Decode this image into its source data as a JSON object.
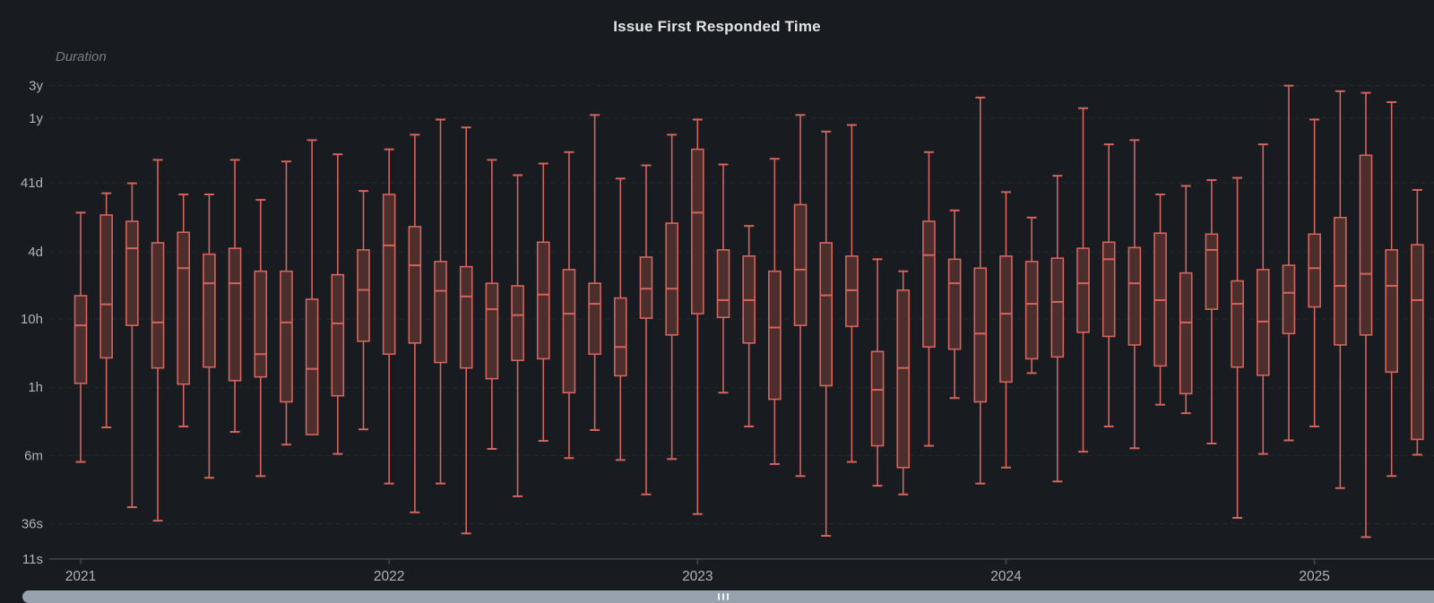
{
  "panel": {
    "title": "Issue First Responded Time",
    "y_axis_label": "Duration",
    "colors": {
      "background": "#181b1f",
      "title_text": "#e3e4e6",
      "axis_text": "#b0b3b6",
      "axis_title_text": "#787d84",
      "box_border": "#d4645e",
      "box_fill": "#4c2e2d",
      "grid_line": "rgba(255,255,255,0.07)",
      "axis_line": "#44474b",
      "scrollbar": "#98a1ae"
    }
  },
  "chart_data": {
    "type": "boxplot",
    "title": "Issue First Responded Time",
    "ylabel": "Duration",
    "xlabel": "",
    "y_scale": "log",
    "unit": "seconds",
    "grid": "horizontal-dashed",
    "stats_order": [
      "min",
      "q1",
      "median",
      "q3",
      "max"
    ],
    "y_ticks": [
      {
        "label": "3y",
        "seconds": 94608000
      },
      {
        "label": "1y",
        "seconds": 31536000
      },
      {
        "label": "41d",
        "seconds": 3542400
      },
      {
        "label": "4d",
        "seconds": 345600
      },
      {
        "label": "10h",
        "seconds": 36000
      },
      {
        "label": "1h",
        "seconds": 3600
      },
      {
        "label": "6m",
        "seconds": 360
      },
      {
        "label": "36s",
        "seconds": 36
      },
      {
        "label": "11s",
        "seconds": 11
      }
    ],
    "x_year_labels": [
      "2021",
      "2022",
      "2023",
      "2024",
      "2025"
    ],
    "categories": [
      "2021-01",
      "2021-02",
      "2021-03",
      "2021-04",
      "2021-05",
      "2021-06",
      "2021-07",
      "2021-08",
      "2021-09",
      "2021-10",
      "2021-11",
      "2021-12",
      "2022-01",
      "2022-02",
      "2022-03",
      "2022-04",
      "2022-05",
      "2022-06",
      "2022-07",
      "2022-08",
      "2022-09",
      "2022-10",
      "2022-11",
      "2022-12",
      "2023-01",
      "2023-02",
      "2023-03",
      "2023-04",
      "2023-05",
      "2023-06",
      "2023-07",
      "2023-08",
      "2023-09",
      "2023-10",
      "2023-11",
      "2023-12",
      "2024-01",
      "2024-02",
      "2024-03",
      "2024-04",
      "2024-05",
      "2024-06",
      "2024-07",
      "2024-08",
      "2024-09",
      "2024-10",
      "2024-11",
      "2024-12",
      "2025-01",
      "2025-02",
      "2025-03",
      "2025-04",
      "2025-05"
    ],
    "values": [
      [
        290,
        4100,
        29000,
        79000,
        1300000
      ],
      [
        930,
        9700,
        59000,
        1200000,
        2500000
      ],
      [
        63,
        29000,
        390000,
        970000,
        3500000
      ],
      [
        40,
        6900,
        32000,
        470000,
        7700000
      ],
      [
        960,
        4000,
        200000,
        670000,
        2400000
      ],
      [
        170,
        7100,
        120000,
        320000,
        2400000
      ],
      [
        800,
        4500,
        120000,
        390000,
        7700000
      ],
      [
        180,
        5100,
        11000,
        180000,
        2000000
      ],
      [
        520,
        2200,
        32000,
        180000,
        7300000
      ],
      [
        730,
        730,
        6700,
        70000,
        15000000
      ],
      [
        380,
        2700,
        31000,
        160000,
        9300000
      ],
      [
        870,
        17000,
        96000,
        370000,
        2700000
      ],
      [
        140,
        11000,
        430000,
        2400000,
        11000000
      ],
      [
        53,
        16000,
        220000,
        810000,
        18000000
      ],
      [
        140,
        8300,
        93000,
        250000,
        30000000
      ],
      [
        26,
        6900,
        77000,
        210000,
        23000000
      ],
      [
        450,
        4800,
        50000,
        120000,
        7700000
      ],
      [
        91,
        8900,
        41000,
        110000,
        4600000
      ],
      [
        590,
        9400,
        82000,
        480000,
        6800000
      ],
      [
        330,
        3000,
        43000,
        190000,
        10000000
      ],
      [
        850,
        11000,
        60000,
        120000,
        35000000
      ],
      [
        310,
        5300,
        14000,
        73000,
        4100000
      ],
      [
        97,
        37000,
        100000,
        290000,
        6400000
      ],
      [
        320,
        21000,
        100000,
        910000,
        18000000
      ],
      [
        50,
        43000,
        1300000,
        11000000,
        30000000
      ],
      [
        3000,
        38000,
        68000,
        370000,
        6600000
      ],
      [
        960,
        16000,
        68000,
        300000,
        830000
      ],
      [
        270,
        2400,
        27000,
        180000,
        8000000
      ],
      [
        180,
        29000,
        190000,
        1700000,
        35000000
      ],
      [
        24,
        3800,
        80000,
        470000,
        20000000
      ],
      [
        290,
        28000,
        95000,
        300000,
        25000000
      ],
      [
        130,
        500,
        3300,
        12000,
        270000
      ],
      [
        97,
        240,
        6900,
        95000,
        180000
      ],
      [
        500,
        14000,
        310000,
        970000,
        10000000
      ],
      [
        2500,
        13000,
        120000,
        270000,
        1400000
      ],
      [
        140,
        2200,
        22000,
        200000,
        63000000
      ],
      [
        240,
        4300,
        43000,
        300000,
        2600000
      ],
      [
        5800,
        9400,
        60000,
        250000,
        1100000
      ],
      [
        150,
        10000,
        64000,
        280000,
        4500000
      ],
      [
        410,
        23000,
        120000,
        390000,
        44000000
      ],
      [
        960,
        20000,
        270000,
        480000,
        13000000
      ],
      [
        460,
        15000,
        120000,
        400000,
        15000000
      ],
      [
        2000,
        7400,
        68000,
        650000,
        2400000
      ],
      [
        1500,
        2900,
        32000,
        170000,
        3200000
      ],
      [
        540,
        50000,
        370000,
        630000,
        3900000
      ],
      [
        44,
        7100,
        60000,
        130000,
        4200000
      ],
      [
        380,
        5400,
        33000,
        190000,
        13000000
      ],
      [
        600,
        22000,
        87000,
        220000,
        94000000
      ],
      [
        960,
        54000,
        200000,
        630000,
        30000000
      ],
      [
        120,
        15000,
        110000,
        1100000,
        78000000
      ],
      [
        23,
        21000,
        165000,
        9000000,
        74000000
      ],
      [
        180,
        6000,
        110000,
        370000,
        54000000
      ],
      [
        370,
        620,
        68000,
        440000,
        2800000
      ]
    ]
  }
}
